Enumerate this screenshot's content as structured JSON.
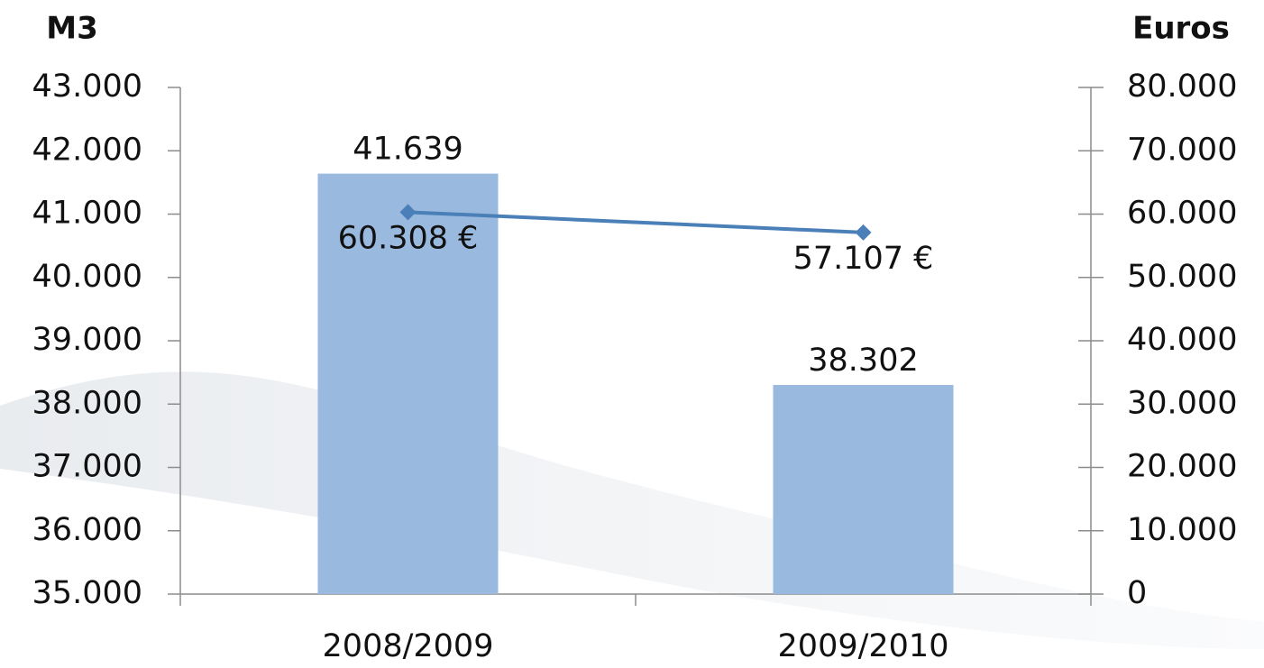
{
  "chart_data": {
    "type": "bar",
    "y_label": "M3",
    "y2_label": "Euros",
    "categories": [
      "2008/2009",
      "2009/2010"
    ],
    "series": [
      {
        "type": "bar",
        "color": "#9ab9de",
        "values": [
          41639,
          38302
        ],
        "value_labels": [
          "41.639",
          "38.302"
        ]
      },
      {
        "type": "line",
        "axis": "y2",
        "color": "#4a7fb8",
        "values": [
          60308,
          57107
        ],
        "value_labels": [
          "60.308 €",
          "57.107 €"
        ]
      }
    ],
    "ylim": [
      35000,
      43000
    ],
    "yticks": [
      {
        "value": 35000,
        "label": "35.000"
      },
      {
        "value": 36000,
        "label": "36.000"
      },
      {
        "value": 37000,
        "label": "37.000"
      },
      {
        "value": 38000,
        "label": "38.000"
      },
      {
        "value": 39000,
        "label": "39.000"
      },
      {
        "value": 40000,
        "label": "40.000"
      },
      {
        "value": 41000,
        "label": "41.000"
      },
      {
        "value": 42000,
        "label": "42.000"
      },
      {
        "value": 43000,
        "label": "43.000"
      }
    ],
    "y2lim": [
      0,
      80000
    ],
    "y2ticks": [
      0,
      {
        "value": 10000,
        "label": "10.000"
      },
      {
        "value": 20000,
        "label": "20.000"
      },
      {
        "value": 30000,
        "label": "30.000"
      },
      {
        "value": 40000,
        "label": "40.000"
      },
      {
        "value": 50000,
        "label": "50.000"
      },
      {
        "value": 60000,
        "label": "60.000"
      },
      {
        "value": 70000,
        "label": "70.000"
      },
      {
        "value": 80000,
        "label": "80.000"
      }
    ]
  }
}
